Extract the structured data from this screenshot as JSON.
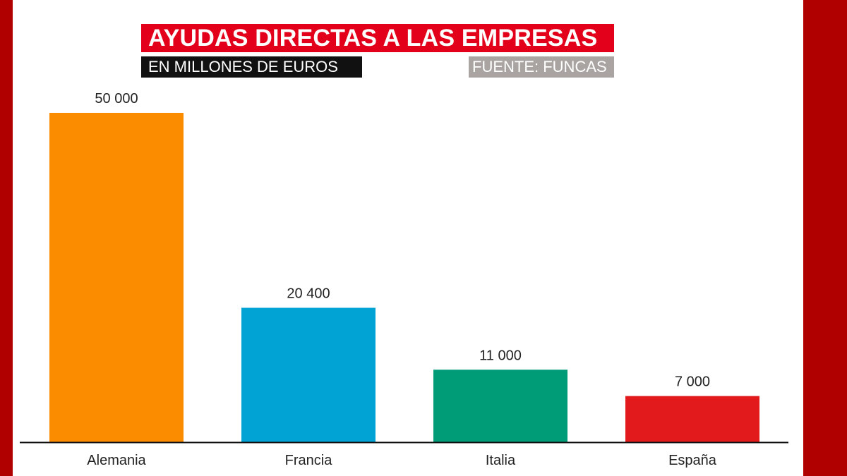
{
  "header": {
    "title": "AYUDAS DIRECTAS A LAS EMPRESAS",
    "subtitle": "EN MILLONES DE EUROS",
    "source": "FUENTE: FUNCAS"
  },
  "colors": {
    "frame": "#b00000",
    "title_bg": "#e2001a",
    "subtitle_bg": "#111111",
    "source_bg": "#a9a4a1"
  },
  "chart_data": {
    "type": "bar",
    "title": "AYUDAS DIRECTAS A LAS EMPRESAS",
    "subtitle": "EN MILLONES DE EUROS",
    "source": "FUENTE: FUNCAS",
    "categories": [
      "Alemania",
      "Francia",
      "Italia",
      "España"
    ],
    "values": [
      50000,
      20400,
      11000,
      7000
    ],
    "value_labels": [
      "50 000",
      "20 400",
      "11 000",
      "7 000"
    ],
    "colors": [
      "#fb8c00",
      "#00a3d4",
      "#009b77",
      "#e31a1c"
    ],
    "ylim": [
      0,
      50000
    ],
    "grid": false,
    "legend": "none"
  }
}
